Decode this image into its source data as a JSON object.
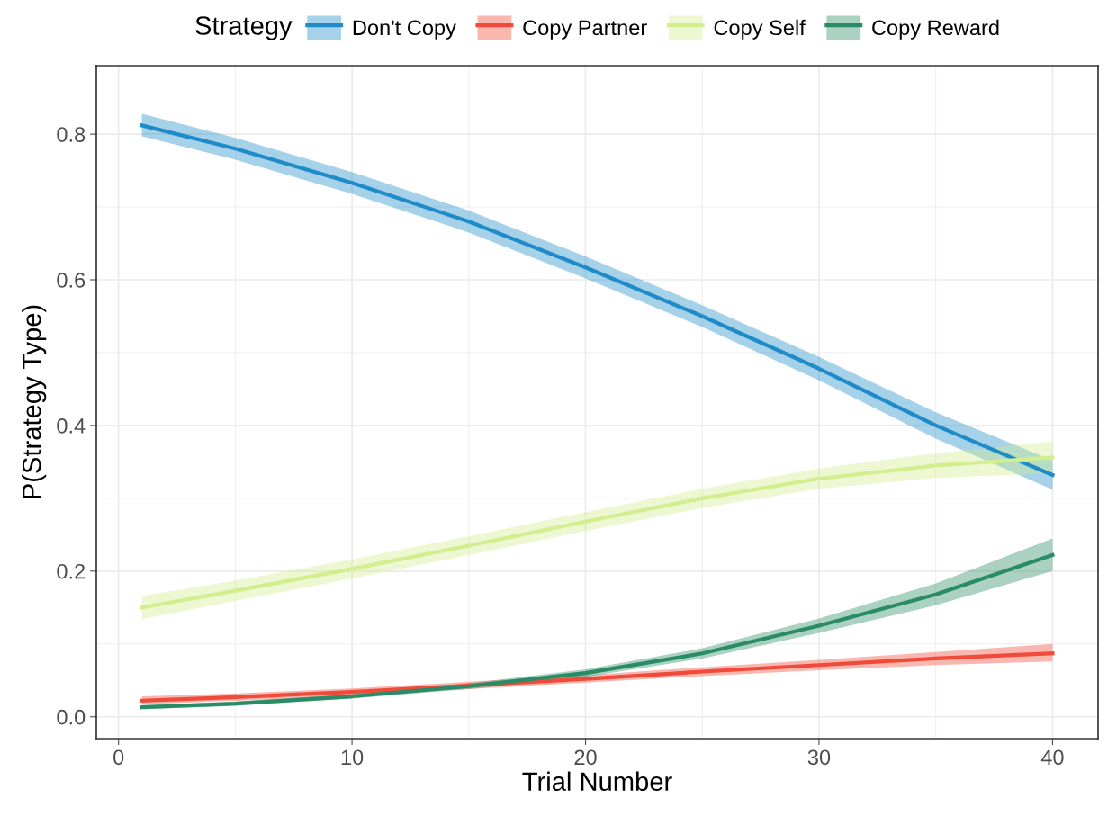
{
  "chart_data": {
    "type": "line",
    "xlabel": "Trial Number",
    "ylabel": "P(Strategy Type)",
    "legend_title": "Strategy",
    "legend": "top",
    "grid": true,
    "x": [
      1,
      5,
      10,
      15,
      20,
      25,
      30,
      35,
      40
    ],
    "series": [
      {
        "name": "Don't Copy",
        "color": "#1f8bc9",
        "values": [
          0.812,
          0.78,
          0.733,
          0.68,
          0.617,
          0.55,
          0.478,
          0.4,
          0.332
        ],
        "lower": [
          0.797,
          0.765,
          0.718,
          0.665,
          0.602,
          0.535,
          0.462,
          0.382,
          0.312
        ],
        "upper": [
          0.828,
          0.795,
          0.748,
          0.695,
          0.632,
          0.565,
          0.494,
          0.418,
          0.352
        ]
      },
      {
        "name": "Copy Partner",
        "color": "#ef4a3a",
        "values": [
          0.022,
          0.027,
          0.034,
          0.043,
          0.052,
          0.062,
          0.071,
          0.08,
          0.087
        ],
        "lower": [
          0.017,
          0.022,
          0.029,
          0.038,
          0.047,
          0.056,
          0.064,
          0.071,
          0.076
        ],
        "upper": [
          0.028,
          0.032,
          0.039,
          0.048,
          0.057,
          0.068,
          0.078,
          0.089,
          0.1
        ]
      },
      {
        "name": "Copy Self",
        "color": "#d2ee8e",
        "values": [
          0.15,
          0.173,
          0.203,
          0.235,
          0.268,
          0.3,
          0.327,
          0.345,
          0.356
        ],
        "lower": [
          0.134,
          0.159,
          0.19,
          0.222,
          0.255,
          0.287,
          0.313,
          0.328,
          0.334
        ],
        "upper": [
          0.166,
          0.187,
          0.216,
          0.248,
          0.281,
          0.313,
          0.341,
          0.362,
          0.378
        ]
      },
      {
        "name": "Copy Reward",
        "color": "#2a8c66",
        "values": [
          0.013,
          0.018,
          0.028,
          0.042,
          0.06,
          0.087,
          0.125,
          0.168,
          0.222
        ],
        "lower": [
          0.01,
          0.015,
          0.025,
          0.038,
          0.055,
          0.08,
          0.115,
          0.153,
          0.2
        ],
        "upper": [
          0.016,
          0.021,
          0.031,
          0.046,
          0.065,
          0.094,
          0.135,
          0.183,
          0.245
        ]
      }
    ],
    "xlim": [
      -0.95,
      41.95
    ],
    "ylim": [
      -0.03,
      0.894
    ],
    "xticks": [
      0,
      10,
      20,
      30,
      40
    ],
    "yticks": [
      {
        "value": 0,
        "label": "0.0"
      },
      {
        "value": 0.2,
        "label": "0.2"
      },
      {
        "value": 0.4,
        "label": "0.4"
      },
      {
        "value": 0.6,
        "label": "0.6"
      },
      {
        "value": 0.8,
        "label": "0.8"
      }
    ]
  }
}
